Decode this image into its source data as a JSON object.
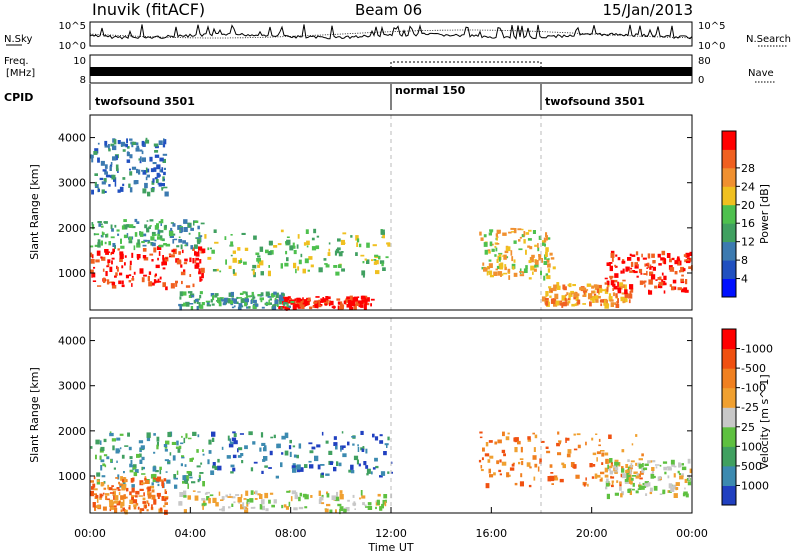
{
  "header": {
    "station": "Inuvik (fitACF)",
    "beam": "Beam 06",
    "date": "15/Jan/2013"
  },
  "noise_panel": {
    "left_label": "N.Sky",
    "right_label": "N.Search",
    "left_ticks": [
      "10^5",
      "10^0"
    ],
    "right_ticks": [
      "10^5",
      "10^0"
    ]
  },
  "freq_panel": {
    "left_label_1": "Freq.",
    "left_label_2": "[MHz]",
    "right_label": "Nave",
    "left_ticks": [
      "10",
      "8"
    ],
    "right_ticks": [
      "80",
      "0"
    ]
  },
  "cpid_panel": {
    "label": "CPID",
    "segments": [
      {
        "name": "twofsound 3501",
        "start_hour": 0,
        "end_hour": 12
      },
      {
        "name": "normal 150",
        "start_hour": 12,
        "end_hour": 18
      },
      {
        "name": "twofsound 3501",
        "start_hour": 18,
        "end_hour": 24
      }
    ]
  },
  "chart_data": [
    {
      "type": "heatmap",
      "variable": "power",
      "ylabel": "Slant Range [km]",
      "ylim": [
        180,
        4500
      ],
      "yticks": [
        "1000",
        "2000",
        "3000",
        "4000"
      ],
      "xlim": [
        0,
        24
      ],
      "colorbar": {
        "label": "Power [dB]",
        "ticks": [
          "4",
          "8",
          "12",
          "16",
          "20",
          "24",
          "28"
        ],
        "colors": [
          "#0010ff",
          "#2050c0",
          "#3c7ab0",
          "#40a060",
          "#4ec04e",
          "#f0c020",
          "#f09030",
          "#f06020",
          "#ff0000"
        ]
      },
      "regions": [
        {
          "t0": 0.0,
          "t1": 4.5,
          "r0": 700,
          "r1": 1600,
          "level": 8
        },
        {
          "t0": 0.0,
          "t1": 4.5,
          "r0": 1600,
          "r1": 2200,
          "level": 3
        },
        {
          "t0": 4.5,
          "t1": 12.0,
          "r0": 1000,
          "r1": 2000,
          "level": 4
        },
        {
          "t0": 7.5,
          "t1": 11.2,
          "r0": 250,
          "r1": 500,
          "level": 8
        },
        {
          "t0": 3.5,
          "t1": 8.0,
          "r0": 250,
          "r1": 600,
          "level": 3
        },
        {
          "t0": 15.5,
          "t1": 18.5,
          "r0": 900,
          "r1": 2000,
          "level": 5
        },
        {
          "t0": 18.0,
          "t1": 21.5,
          "r0": 300,
          "r1": 800,
          "level": 6
        },
        {
          "t0": 20.5,
          "t1": 24.0,
          "r0": 600,
          "r1": 1500,
          "level": 8
        },
        {
          "t0": 0.0,
          "t1": 3.0,
          "r0": 2800,
          "r1": 4000,
          "level": 2
        }
      ]
    },
    {
      "type": "heatmap",
      "variable": "velocity",
      "ylabel": "Slant Range [km]",
      "ylim": [
        180,
        4500
      ],
      "yticks": [
        "1000",
        "2000",
        "3000",
        "4000"
      ],
      "xlim": [
        0,
        24
      ],
      "xticks": [
        "00:00",
        "04:00",
        "08:00",
        "12:00",
        "16:00",
        "20:00",
        "00:00"
      ],
      "xlabel": "Time UT",
      "colorbar": {
        "label": "Velocity [m s^-1]",
        "ticks": [
          "1000",
          "500",
          "100",
          "25",
          "-25",
          "-100",
          "-500",
          "-1000"
        ],
        "colors": [
          "#2040c0",
          "#3c8ab0",
          "#40a060",
          "#5ec040",
          "#c8c8c8",
          "#f0a030",
          "#f08020",
          "#f05010",
          "#ff0000"
        ]
      },
      "regions": [
        {
          "t0": 0.0,
          "t1": 4.5,
          "r0": 800,
          "r1": 2000,
          "level": 2
        },
        {
          "t0": 4.5,
          "t1": 12.0,
          "r0": 1000,
          "r1": 2000,
          "level": 1
        },
        {
          "t0": 15.5,
          "t1": 22.0,
          "r0": 800,
          "r1": 2000,
          "level": 6
        },
        {
          "t0": 20.5,
          "t1": 24.0,
          "r0": 600,
          "r1": 1400,
          "level": 4
        },
        {
          "t0": 3.5,
          "t1": 12.0,
          "r0": 250,
          "r1": 700,
          "level": 4
        },
        {
          "t0": 0.0,
          "t1": 3.0,
          "r0": 250,
          "r1": 1000,
          "level": 6
        }
      ]
    }
  ]
}
